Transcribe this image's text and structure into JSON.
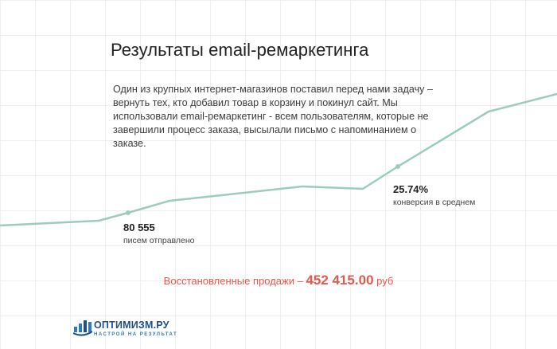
{
  "title": "Результаты email-ремаркетинга",
  "description": "Один из крупных интернет-магазинов поставил перед нами задачу – вернуть тех, кто добавил товар в корзину и покинул сайт. Мы использовали email-ремаркетинг - всем пользователям, которые не завершили процесс заказа, высылали письмо с напоминанием о заказе.",
  "stats": {
    "sent": {
      "value": "80 555",
      "caption": "писем отправлено"
    },
    "conversion": {
      "value": "25.74%",
      "caption": "конверсия в среднем"
    }
  },
  "sales": {
    "label": "Восстановленные продажи – ",
    "amount": "452 415.00",
    "currency": " руб"
  },
  "logo": {
    "name": "ОПТИМИЗМ.РУ",
    "tagline": "НАСТРОЙ НА РЕЗУЛЬТАТ",
    "icon": "bar-chart-logo-icon"
  },
  "colors": {
    "line": "#9ccdbb",
    "accent": "#e05a50",
    "brand": "#1f4f8a"
  }
}
